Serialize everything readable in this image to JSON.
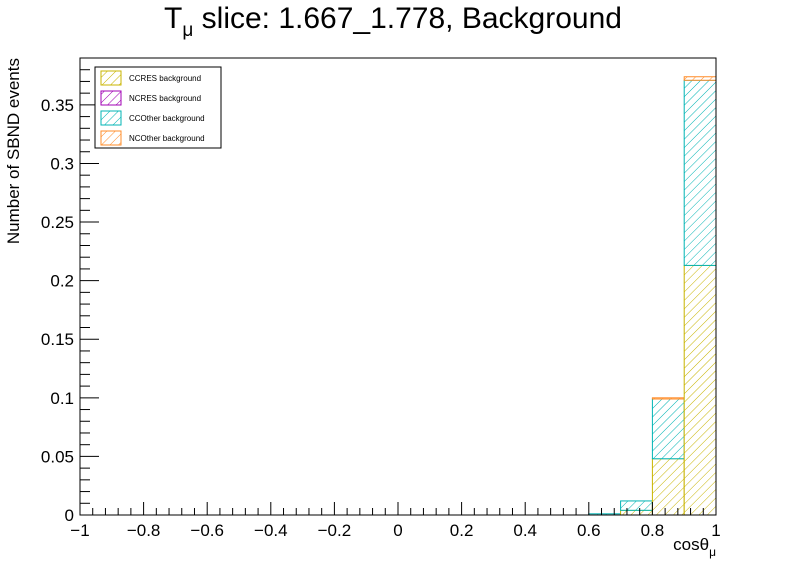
{
  "chart_data": {
    "type": "bar",
    "stacked": true,
    "title": {
      "prefix": "T",
      "sub": "μ",
      "rest": " slice: 1.667_1.778, Background"
    },
    "xlabel": {
      "main": "cosθ",
      "sub": "μ"
    },
    "ylabel": "Number of SBND events",
    "xlim": [
      -1,
      1
    ],
    "ylim": [
      0,
      0.39
    ],
    "x_ticks": [
      -1,
      -0.8,
      -0.6,
      -0.4,
      -0.2,
      0,
      0.2,
      0.4,
      0.6,
      0.8,
      1
    ],
    "x_tick_labels": [
      "−1",
      "−0.8",
      "−0.6",
      "−0.4",
      "−0.2",
      "0",
      "0.2",
      "0.4",
      "0.6",
      "0.8",
      "1"
    ],
    "y_ticks": [
      0,
      0.05,
      0.1,
      0.15,
      0.2,
      0.25,
      0.3,
      0.35
    ],
    "y_tick_labels": [
      "0",
      "0.05",
      "0.1",
      "0.15",
      "0.2",
      "0.25",
      "0.3",
      "0.35"
    ],
    "bin_edges": [
      -1,
      -0.9,
      -0.8,
      -0.7,
      -0.6,
      -0.5,
      -0.4,
      -0.3,
      -0.2,
      -0.1,
      0,
      0.1,
      0.2,
      0.3,
      0.4,
      0.5,
      0.6,
      0.7,
      0.8,
      0.9,
      1
    ],
    "series": [
      {
        "name": "CCRES background",
        "color": "#c8b400",
        "values": [
          0,
          0,
          0,
          0,
          0,
          0,
          0,
          0,
          0,
          0,
          0,
          0,
          0,
          0,
          0,
          0,
          0,
          0.004,
          0.048,
          0.213
        ]
      },
      {
        "name": "NCRES background",
        "color": "#a000b4",
        "values": [
          0,
          0,
          0,
          0,
          0,
          0,
          0,
          0,
          0,
          0,
          0,
          0,
          0,
          0,
          0,
          0,
          0,
          0,
          0,
          0
        ]
      },
      {
        "name": "CCOther background",
        "color": "#00b4b4",
        "values": [
          0,
          0,
          0,
          0,
          0,
          0,
          0,
          0,
          0,
          0,
          0,
          0,
          0,
          0,
          0,
          0,
          0.001,
          0.008,
          0.051,
          0.158
        ]
      },
      {
        "name": "NCOther background",
        "color": "#ff8c28",
        "values": [
          0,
          0,
          0,
          0,
          0,
          0,
          0,
          0,
          0,
          0,
          0,
          0,
          0,
          0,
          0,
          0,
          0,
          0,
          0.001,
          0.003
        ]
      }
    ],
    "legend_position": "top-left",
    "grid": false,
    "fill_style": "hatched"
  }
}
